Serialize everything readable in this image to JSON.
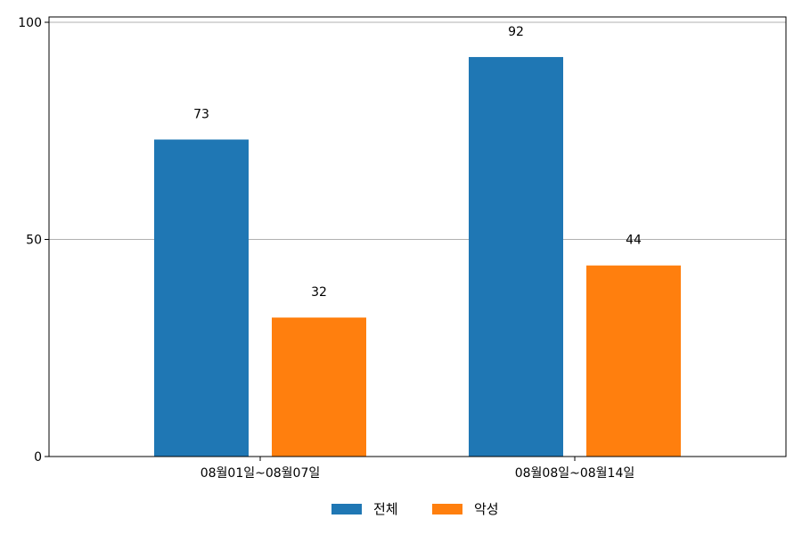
{
  "chart_data": {
    "type": "bar",
    "categories": [
      "08월01일~08월07일",
      "08월08일~08월14일"
    ],
    "series": [
      {
        "name": "전체",
        "values": [
          73,
          92
        ],
        "color": "#1f77b4"
      },
      {
        "name": "악성",
        "values": [
          32,
          44
        ],
        "color": "#ff7f0e"
      }
    ],
    "ylim": [
      0,
      100
    ],
    "yticks": [
      0,
      50,
      100
    ],
    "grid": "horizontal",
    "legend": "bottom-center",
    "data_labels": true
  }
}
